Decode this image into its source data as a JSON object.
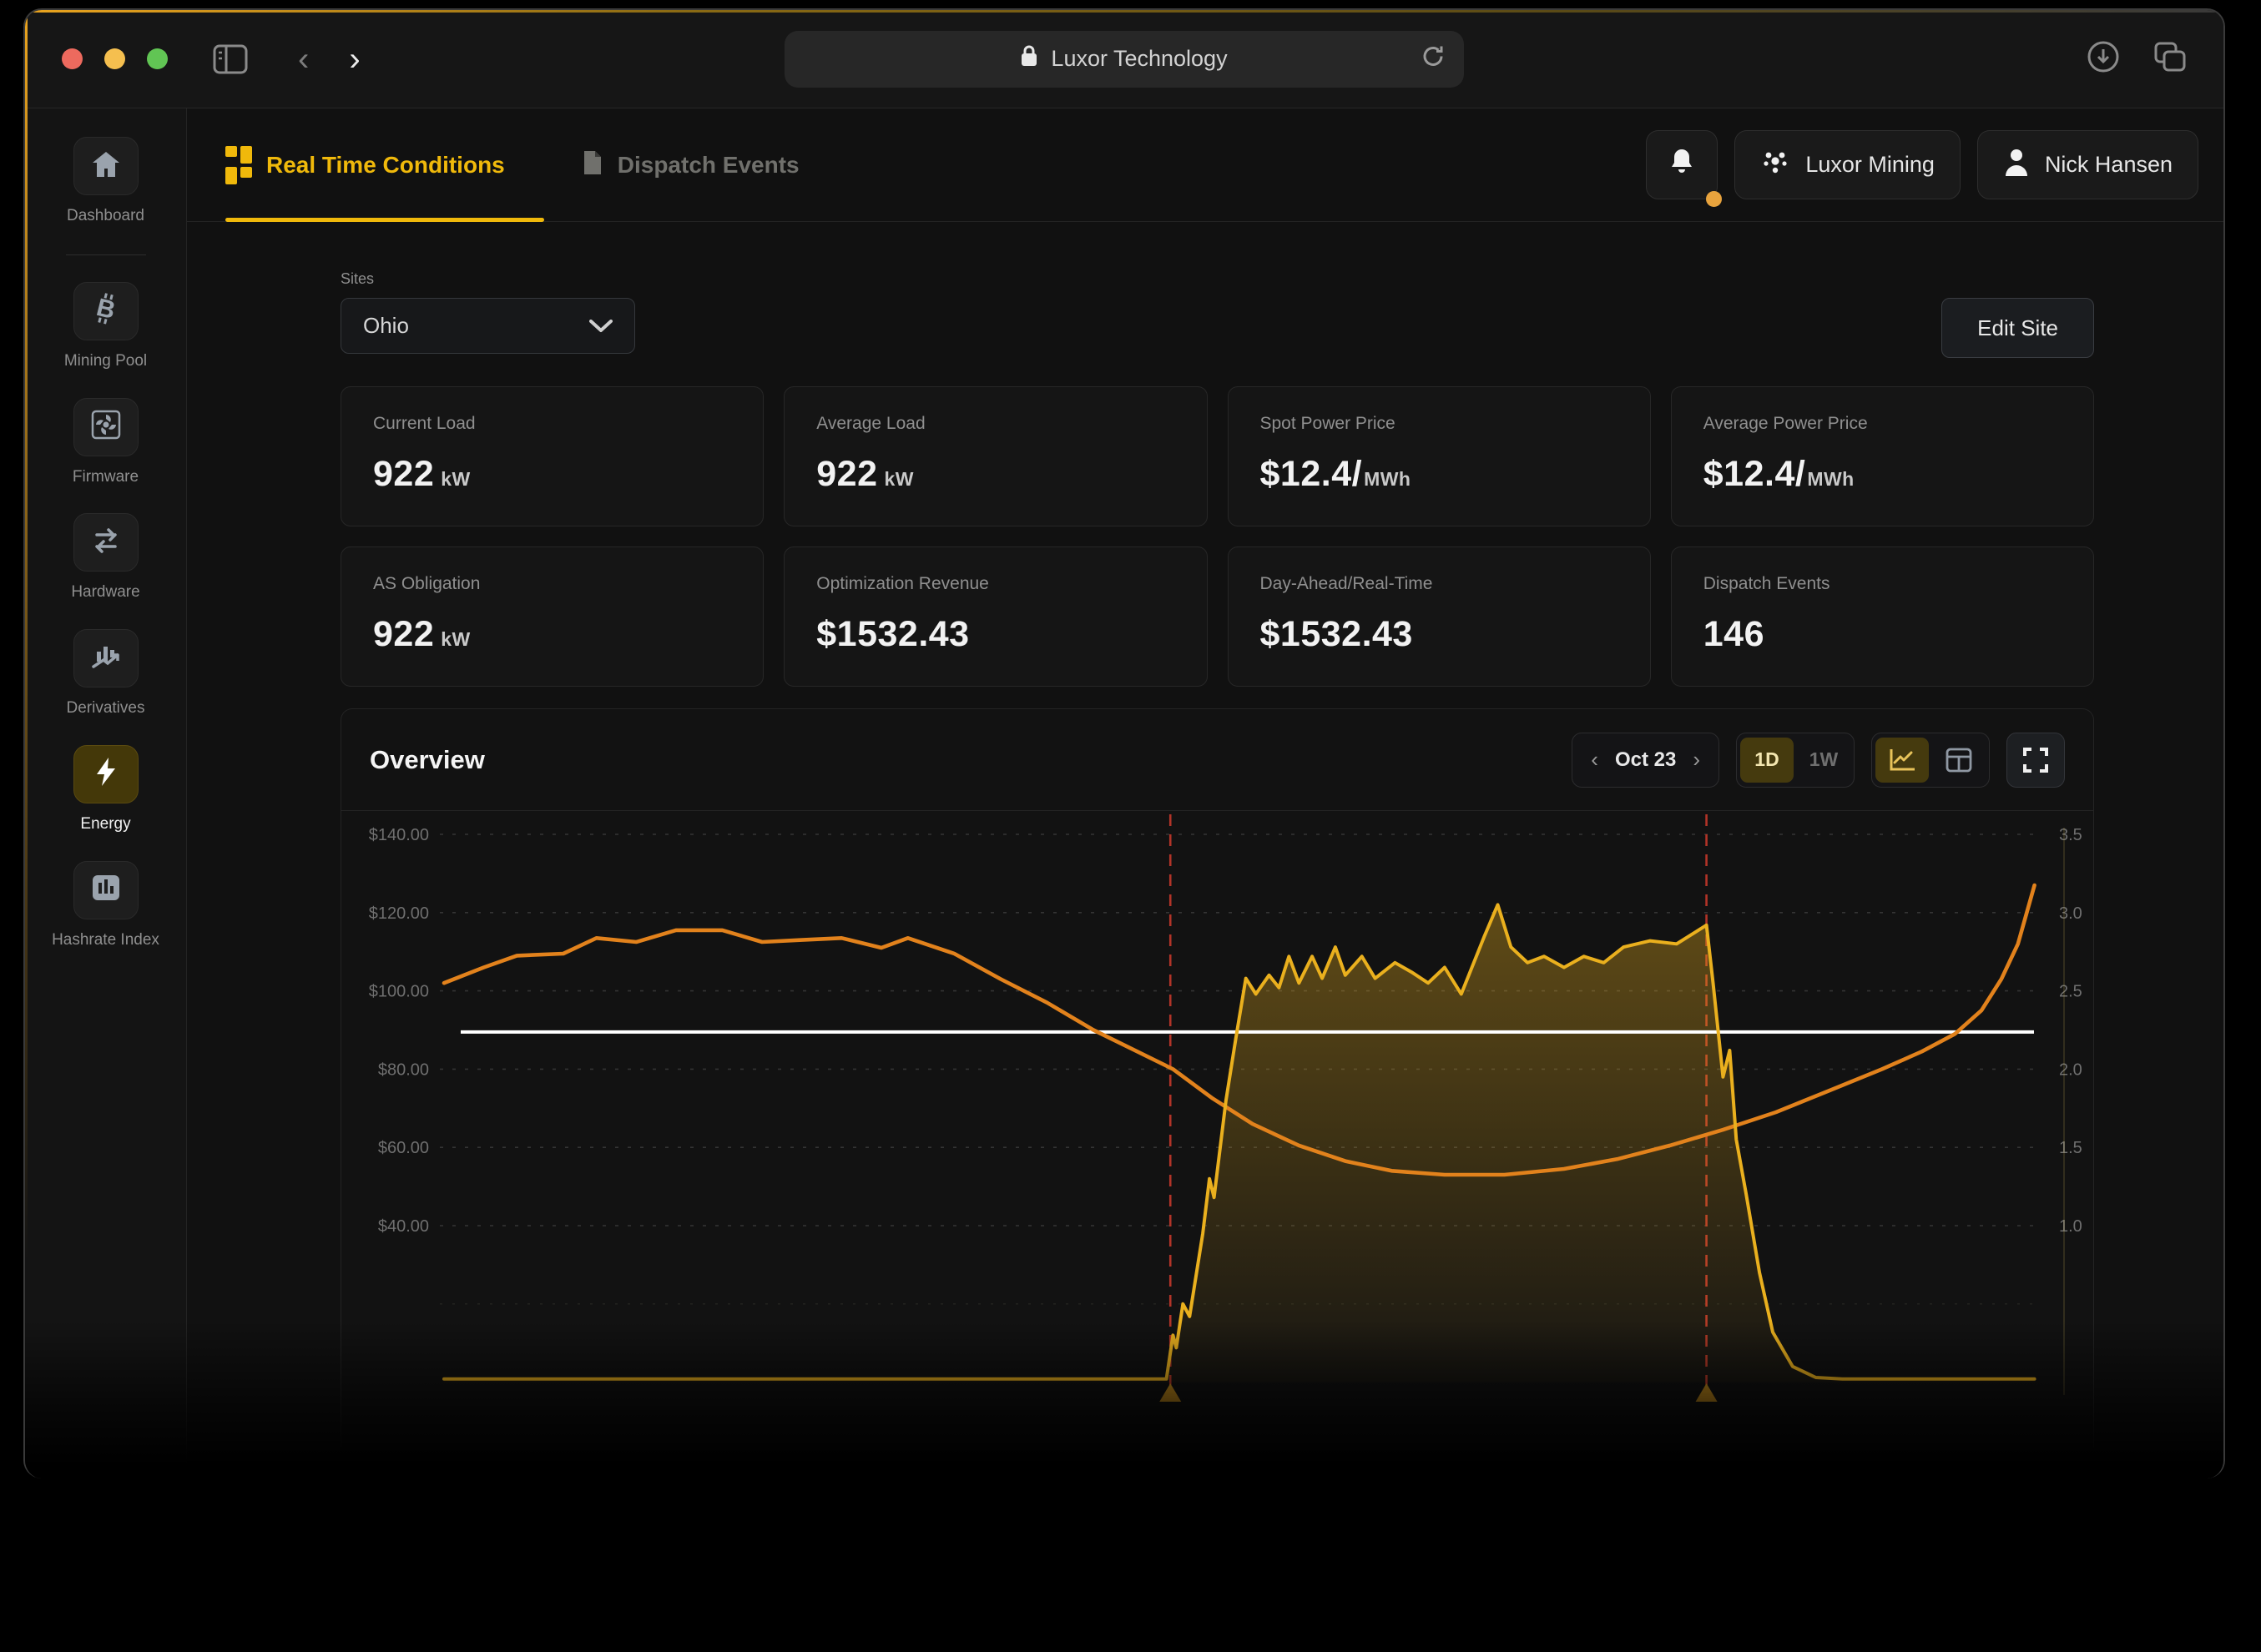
{
  "browser": {
    "url_text": "Luxor Technology"
  },
  "nav": {
    "tabs": [
      {
        "label": "Real Time Conditions",
        "active": true
      },
      {
        "label": "Dispatch Events",
        "active": false
      }
    ],
    "org": "Luxor Mining",
    "user": "Nick Hansen"
  },
  "sidebar": {
    "items": [
      {
        "label": "Dashboard"
      },
      {
        "label": "Mining Pool"
      },
      {
        "label": "Firmware"
      },
      {
        "label": "Hardware"
      },
      {
        "label": "Derivatives"
      },
      {
        "label": "Energy",
        "active": true
      },
      {
        "label": "Hashrate Index"
      }
    ]
  },
  "site_selector": {
    "label": "Sites",
    "value": "Ohio"
  },
  "edit_site_label": "Edit Site",
  "stats": [
    {
      "label": "Current Load",
      "value": "922",
      "unit": "kW"
    },
    {
      "label": "Average Load",
      "value": "922",
      "unit": "kW"
    },
    {
      "label": "Spot Power Price",
      "value": "$12.4/",
      "unit": "MWh"
    },
    {
      "label": "Average Power Price",
      "value": "$12.4/",
      "unit": "MWh"
    },
    {
      "label": "AS Obligation",
      "value": "922",
      "unit": "kW"
    },
    {
      "label": "Optimization Revenue",
      "value": "$1532.43",
      "unit": ""
    },
    {
      "label": "Day-Ahead/Real-Time",
      "value": "$1532.43",
      "unit": ""
    },
    {
      "label": "Dispatch Events",
      "value": "146",
      "unit": ""
    }
  ],
  "overview": {
    "title": "Overview",
    "date": "Oct 23",
    "range_options": [
      "1D",
      "1W"
    ]
  },
  "colors": {
    "accent": "#f0b90b",
    "price_line": "#e2821c",
    "load_line": "#eab01e",
    "load_fill": "#eab01e",
    "event_marker": "#b23428",
    "reference_line": "#ffffff",
    "traffic_red": "#ed6a5e",
    "traffic_yellow": "#f5bf4f",
    "traffic_green": "#61c554",
    "notification_dot": "#e8a33d"
  },
  "chart_data": {
    "type": "line",
    "title": "Overview",
    "x_unit": "hour of day (Oct 23)",
    "x_range": [
      0,
      24
    ],
    "grid": "horizontal-dashed",
    "left_axis": {
      "labels": [
        "$140.00",
        "$120.00",
        "$100.00",
        "$80.00",
        "$60.00",
        "$40.00"
      ],
      "values": [
        140,
        120,
        100,
        80,
        60,
        40
      ]
    },
    "right_axis": {
      "labels": [
        "3.5",
        "3.0",
        "2.5",
        "2.0",
        "1.5",
        "1.0"
      ],
      "values": [
        3.5,
        3.0,
        2.5,
        2.0,
        1.5,
        1.0
      ]
    },
    "reference_line": {
      "axis": "left",
      "value": 89.5,
      "color": "#ffffff"
    },
    "event_markers": {
      "hours": [
        10.96,
        19.05
      ],
      "color": "#b23428",
      "marker": "triangle-up"
    },
    "series": [
      {
        "name": "power-price",
        "axis": "left",
        "color": "#e2821c",
        "area": false,
        "points": [
          [
            0,
            102
          ],
          [
            0.6,
            106
          ],
          [
            1.1,
            109
          ],
          [
            1.8,
            109.5
          ],
          [
            2.3,
            113.5
          ],
          [
            2.9,
            112.5
          ],
          [
            3.5,
            115.5
          ],
          [
            4.2,
            115.5
          ],
          [
            4.8,
            112.5
          ],
          [
            5.4,
            113
          ],
          [
            6,
            113.5
          ],
          [
            6.6,
            111
          ],
          [
            7,
            113.5
          ],
          [
            7.7,
            109.5
          ],
          [
            8.4,
            103
          ],
          [
            9.1,
            97
          ],
          [
            9.8,
            90
          ],
          [
            10.4,
            85
          ],
          [
            11,
            80
          ],
          [
            11.6,
            72.5
          ],
          [
            12.2,
            66
          ],
          [
            12.9,
            60.5
          ],
          [
            13.6,
            56.5
          ],
          [
            14.3,
            54
          ],
          [
            15.1,
            53
          ],
          [
            16,
            53
          ],
          [
            16.9,
            54.5
          ],
          [
            17.7,
            57
          ],
          [
            18.5,
            60.5
          ],
          [
            19.3,
            64.5
          ],
          [
            20.1,
            69
          ],
          [
            20.9,
            74.5
          ],
          [
            21.7,
            80
          ],
          [
            22.3,
            84.5
          ],
          [
            22.8,
            89
          ],
          [
            23.2,
            95
          ],
          [
            23.5,
            103
          ],
          [
            23.75,
            112
          ],
          [
            24,
            127
          ]
        ]
      },
      {
        "name": "load",
        "axis": "right",
        "color": "#eab01e",
        "area": true,
        "points": [
          [
            0,
            0.02
          ],
          [
            10.9,
            0.02
          ],
          [
            11,
            0.3
          ],
          [
            11.05,
            0.22
          ],
          [
            11.15,
            0.5
          ],
          [
            11.25,
            0.42
          ],
          [
            11.45,
            0.95
          ],
          [
            11.55,
            1.3
          ],
          [
            11.62,
            1.18
          ],
          [
            11.8,
            1.8
          ],
          [
            11.95,
            2.2
          ],
          [
            12.1,
            2.58
          ],
          [
            12.25,
            2.48
          ],
          [
            12.45,
            2.6
          ],
          [
            12.6,
            2.52
          ],
          [
            12.75,
            2.72
          ],
          [
            12.9,
            2.55
          ],
          [
            13.1,
            2.72
          ],
          [
            13.25,
            2.58
          ],
          [
            13.45,
            2.78
          ],
          [
            13.6,
            2.6
          ],
          [
            13.85,
            2.72
          ],
          [
            14.05,
            2.58
          ],
          [
            14.35,
            2.68
          ],
          [
            14.6,
            2.62
          ],
          [
            14.85,
            2.55
          ],
          [
            15.1,
            2.65
          ],
          [
            15.35,
            2.48
          ],
          [
            15.7,
            2.85
          ],
          [
            15.9,
            3.05
          ],
          [
            16.1,
            2.78
          ],
          [
            16.35,
            2.68
          ],
          [
            16.6,
            2.72
          ],
          [
            16.9,
            2.65
          ],
          [
            17.2,
            2.72
          ],
          [
            17.5,
            2.68
          ],
          [
            17.8,
            2.78
          ],
          [
            18.2,
            2.82
          ],
          [
            18.6,
            2.8
          ],
          [
            18.9,
            2.88
          ],
          [
            19.05,
            2.92
          ],
          [
            19.15,
            2.55
          ],
          [
            19.3,
            1.95
          ],
          [
            19.4,
            2.12
          ],
          [
            19.5,
            1.55
          ],
          [
            19.65,
            1.2
          ],
          [
            19.85,
            0.7
          ],
          [
            20.05,
            0.32
          ],
          [
            20.35,
            0.1
          ],
          [
            20.7,
            0.03
          ],
          [
            21.1,
            0.02
          ],
          [
            24,
            0.02
          ]
        ]
      }
    ]
  }
}
